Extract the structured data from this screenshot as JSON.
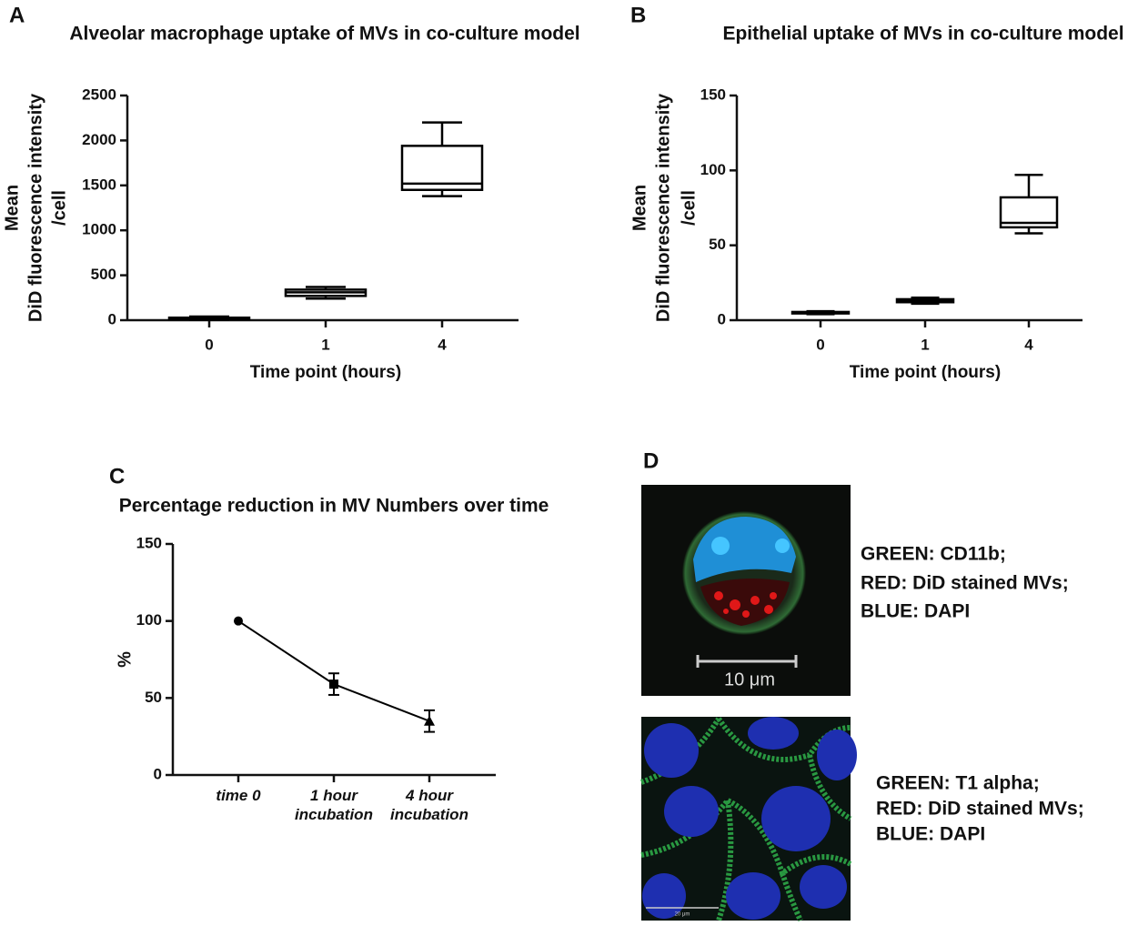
{
  "chart_data": [
    {
      "type": "box",
      "panel_label": "A",
      "title": "Alveolar macrophage uptake of MVs in co-culture model",
      "categories": [
        "0",
        "1",
        "4"
      ],
      "xlabel": "Time point (hours)",
      "ylabel": [
        "Mean",
        "DiD fluorescence intensity",
        "/cell"
      ],
      "stats": {
        "min": [
          5,
          240,
          1380
        ],
        "q1": [
          10,
          270,
          1450
        ],
        "median": [
          18,
          310,
          1520
        ],
        "q3": [
          28,
          340,
          1940
        ],
        "max": [
          40,
          370,
          2200
        ]
      },
      "color": "#000000",
      "ylim": [
        0,
        2500
      ],
      "yticks": [
        0,
        500,
        1000,
        1500,
        2000,
        2500
      ]
    },
    {
      "type": "box",
      "panel_label": "B",
      "title": "Epithelial uptake of MVs in co-culture model",
      "categories": [
        "0",
        "1",
        "4"
      ],
      "xlabel": "Time point (hours)",
      "ylabel": [
        "Mean",
        "DiD fluorescence intensity",
        "/cell"
      ],
      "stats": {
        "min": [
          4,
          11,
          58
        ],
        "q1": [
          4.5,
          12,
          62
        ],
        "median": [
          5,
          13,
          65
        ],
        "q3": [
          5.5,
          14,
          82
        ],
        "max": [
          6,
          15,
          97
        ]
      },
      "color": "#000000",
      "ylim": [
        0,
        150
      ],
      "yticks": [
        0,
        50,
        100,
        150
      ]
    },
    {
      "type": "line",
      "panel_label": "C",
      "title": "Percentage reduction in MV Numbers over time",
      "categories": [
        "time 0",
        "1 hour incubation",
        "4 hour incubation"
      ],
      "ylabel": [
        "%"
      ],
      "series": [
        {
          "values": [
            100,
            59,
            35
          ],
          "errors": [
            null,
            7,
            7
          ],
          "markers": [
            "circle",
            "square",
            "triangle"
          ],
          "color": "#000000"
        }
      ],
      "ylim": [
        0,
        150
      ],
      "yticks": [
        0,
        50,
        100,
        150
      ]
    }
  ],
  "panel_d": {
    "panel_label": "D",
    "image_1": {
      "scale_bar": "10 μm",
      "legend": [
        "GREEN: CD11b;",
        "RED: DiD stained MVs;",
        "BLUE: DAPI"
      ]
    },
    "image_2": {
      "scale_bar": "20 μm",
      "legend": [
        "GREEN: T1 alpha;",
        "RED: DiD stained MVs;",
        "BLUE: DAPI"
      ]
    }
  }
}
